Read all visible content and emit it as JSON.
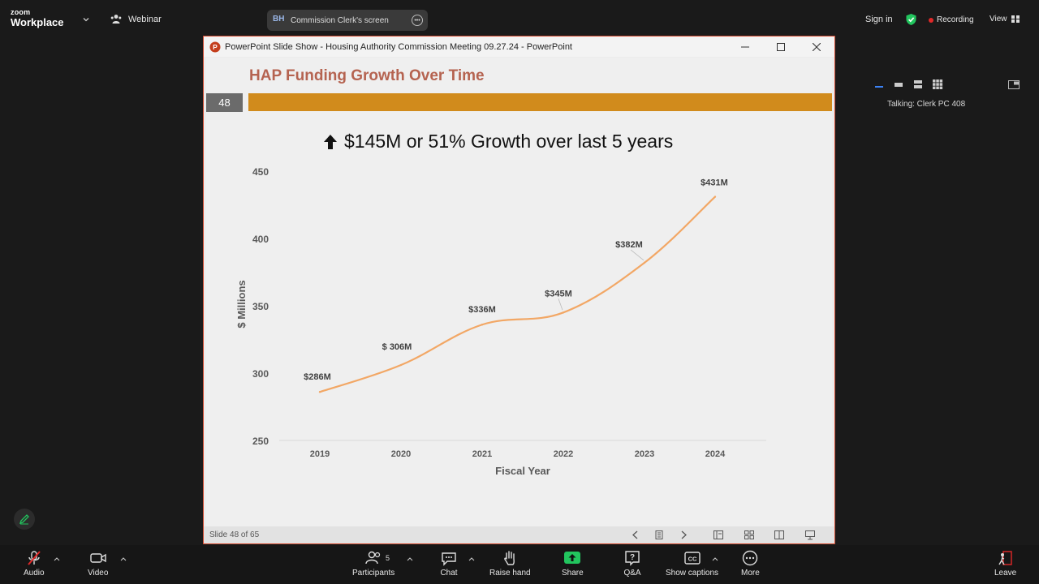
{
  "zoom": {
    "logo_line1": "zoom",
    "logo_line2": "Workplace",
    "webinar_label": "Webinar",
    "share_initials": "BH",
    "share_label": "Commission Clerk's screen",
    "signin_label": "Sign in",
    "recording_label": "Recording",
    "view_label": "View",
    "talking_label": "Talking: Clerk PC 408"
  },
  "powerpoint": {
    "window_title": "PowerPoint Slide Show  -  Housing Authority Commission Meeting 09.27.24 - PowerPoint",
    "slide_title": "HAP Funding Growth Over Time",
    "slide_number": "48",
    "headline": "$145M or 51% Growth over last 5 years",
    "status_label": "Slide 48 of 65"
  },
  "chart_data": {
    "type": "line",
    "categories": [
      "2019",
      "2020",
      "2021",
      "2022",
      "2023",
      "2024"
    ],
    "series": [
      {
        "values": [
          286,
          306,
          336,
          345,
          382,
          431
        ]
      }
    ],
    "data_labels": [
      "$286M",
      "$ 306M",
      "$336M",
      "$345M",
      "$382M",
      "$431M"
    ],
    "ylabel": "$ Millions",
    "xlabel": "Fiscal Year",
    "ylim": [
      250,
      450
    ],
    "yticks": [
      "450",
      "400",
      "350",
      "300",
      "250"
    ],
    "line_color": "#f2a765",
    "grid": false
  },
  "toolbar": {
    "audio": "Audio",
    "video": "Video",
    "participants": "Participants",
    "participants_count": "5",
    "chat": "Chat",
    "raise_hand": "Raise hand",
    "share": "Share",
    "qa": "Q&A",
    "captions": "Show captions",
    "more": "More",
    "leave": "Leave"
  },
  "colors": {
    "accent_bar": "#d18b1c",
    "title_color": "#b56350",
    "share_green": "#22c55e",
    "recording_red": "#e02828"
  }
}
